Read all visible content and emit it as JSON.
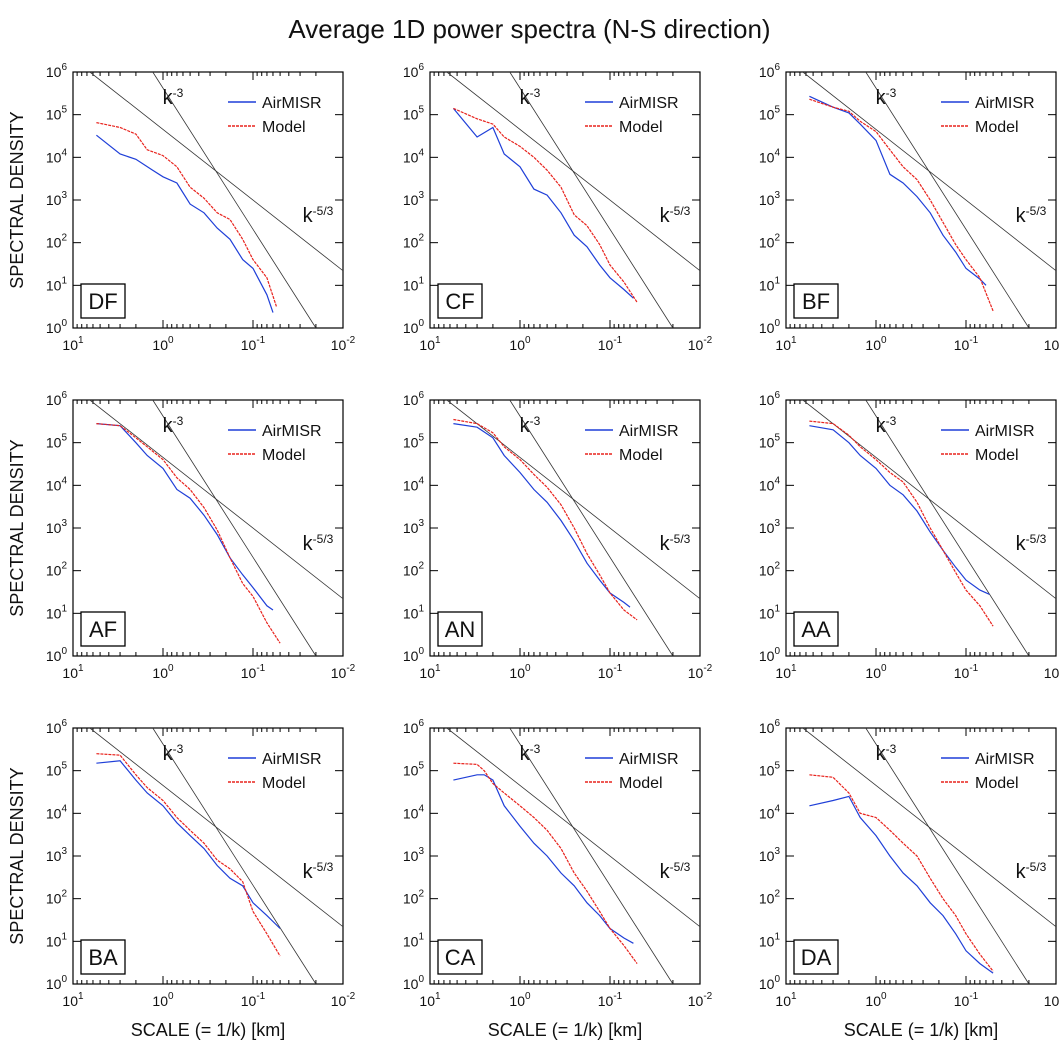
{
  "title": "Average 1D power spectra (N-S direction)",
  "axes": {
    "ylabel": "SPECTRAL DENSITY",
    "xlabel": "SCALE (= 1/k)  [km]",
    "x_ticks": [
      {
        "base": "10",
        "exp": "1"
      },
      {
        "base": "10",
        "exp": "0"
      },
      {
        "base": "10",
        "exp": "-1"
      },
      {
        "base": "10",
        "exp": "-2"
      }
    ],
    "y_ticks": [
      {
        "base": "10",
        "exp": "0"
      },
      {
        "base": "10",
        "exp": "1"
      },
      {
        "base": "10",
        "exp": "2"
      },
      {
        "base": "10",
        "exp": "3"
      },
      {
        "base": "10",
        "exp": "4"
      },
      {
        "base": "10",
        "exp": "5"
      },
      {
        "base": "10",
        "exp": "6"
      }
    ]
  },
  "legend": {
    "airmisr": "AirMISR",
    "model": "Model"
  },
  "reference_lines": {
    "k3": {
      "base": "k",
      "exp": "-3"
    },
    "k53": {
      "base": "k",
      "exp": "-5/3"
    }
  },
  "colors": {
    "airmisr": "#1f3fd8",
    "model": "#e8231d",
    "reference": "#333333",
    "axis": "#000000"
  },
  "chart_data": [
    {
      "type": "line",
      "panel": "DF",
      "x_scale": "log-reversed",
      "y_scale": "log",
      "xlim": [
        10,
        0.01
      ],
      "ylim": [
        1,
        1000000
      ],
      "series": [
        {
          "name": "AirMISR",
          "x": [
            5.5,
            3,
            2,
            1.3,
            1,
            0.7,
            0.5,
            0.35,
            0.25,
            0.18,
            0.13,
            0.1,
            0.07,
            0.06
          ],
          "y": [
            33000,
            12000,
            9000,
            5000,
            3500,
            2500,
            800,
            500,
            220,
            120,
            40,
            25,
            6,
            2.3
          ]
        },
        {
          "name": "Model",
          "x": [
            5.5,
            3,
            2,
            1.5,
            1,
            0.7,
            0.5,
            0.35,
            0.25,
            0.18,
            0.13,
            0.1,
            0.07,
            0.055
          ],
          "y": [
            65000,
            50000,
            35000,
            15000,
            11000,
            6000,
            2000,
            1100,
            500,
            350,
            120,
            40,
            15,
            3.2
          ]
        }
      ]
    },
    {
      "type": "line",
      "panel": "CF",
      "x_scale": "log-reversed",
      "y_scale": "log",
      "xlim": [
        10,
        0.01
      ],
      "ylim": [
        1,
        1000000
      ],
      "series": [
        {
          "name": "AirMISR",
          "x": [
            5.5,
            3,
            2,
            1.5,
            1,
            0.7,
            0.5,
            0.35,
            0.25,
            0.18,
            0.13,
            0.1,
            0.07,
            0.055
          ],
          "y": [
            140000,
            30000,
            50000,
            12000,
            6000,
            1800,
            1300,
            500,
            150,
            80,
            30,
            15,
            8,
            5
          ]
        },
        {
          "name": "Model",
          "x": [
            5.5,
            3,
            2,
            1.5,
            1,
            0.7,
            0.5,
            0.35,
            0.25,
            0.18,
            0.13,
            0.1,
            0.07,
            0.05
          ],
          "y": [
            140000,
            80000,
            60000,
            30000,
            18000,
            10000,
            5000,
            2000,
            450,
            250,
            90,
            30,
            12,
            4
          ]
        }
      ]
    },
    {
      "type": "line",
      "panel": "BF",
      "x_scale": "log-reversed",
      "y_scale": "log",
      "xlim": [
        10,
        0.01
      ],
      "ylim": [
        1,
        1000000
      ],
      "series": [
        {
          "name": "AirMISR",
          "x": [
            5.5,
            3,
            2,
            1.5,
            1,
            0.7,
            0.5,
            0.35,
            0.25,
            0.18,
            0.13,
            0.1,
            0.07,
            0.06
          ],
          "y": [
            270000,
            150000,
            110000,
            60000,
            25000,
            4000,
            2500,
            1200,
            500,
            150,
            60,
            25,
            14,
            10
          ]
        },
        {
          "name": "Model",
          "x": [
            5.5,
            3,
            2,
            1.5,
            1,
            0.7,
            0.5,
            0.35,
            0.25,
            0.18,
            0.13,
            0.1,
            0.07,
            0.05
          ],
          "y": [
            230000,
            150000,
            120000,
            70000,
            40000,
            15000,
            6000,
            3000,
            1000,
            300,
            90,
            40,
            15,
            2.5
          ]
        }
      ]
    },
    {
      "type": "line",
      "panel": "AF",
      "x_scale": "log-reversed",
      "y_scale": "log",
      "xlim": [
        10,
        0.01
      ],
      "ylim": [
        1,
        1000000
      ],
      "series": [
        {
          "name": "AirMISR",
          "x": [
            5.5,
            3,
            2,
            1.5,
            1,
            0.7,
            0.5,
            0.35,
            0.25,
            0.18,
            0.13,
            0.1,
            0.07,
            0.06
          ],
          "y": [
            280000,
            250000,
            100000,
            50000,
            25000,
            8000,
            5000,
            2000,
            700,
            200,
            80,
            40,
            15,
            12
          ]
        },
        {
          "name": "Model",
          "x": [
            5.5,
            3,
            2,
            1.5,
            1,
            0.7,
            0.5,
            0.35,
            0.25,
            0.18,
            0.13,
            0.1,
            0.07,
            0.05
          ],
          "y": [
            280000,
            250000,
            130000,
            80000,
            40000,
            15000,
            8000,
            3000,
            900,
            200,
            50,
            25,
            6,
            2
          ]
        }
      ]
    },
    {
      "type": "line",
      "panel": "AN",
      "x_scale": "log-reversed",
      "y_scale": "log",
      "xlim": [
        10,
        0.01
      ],
      "ylim": [
        1,
        1000000
      ],
      "series": [
        {
          "name": "AirMISR",
          "x": [
            5.5,
            3,
            2,
            1.5,
            1,
            0.7,
            0.5,
            0.35,
            0.25,
            0.18,
            0.13,
            0.1,
            0.07,
            0.06
          ],
          "y": [
            280000,
            230000,
            130000,
            50000,
            20000,
            8000,
            4000,
            1500,
            500,
            150,
            60,
            30,
            18,
            14
          ]
        },
        {
          "name": "Model",
          "x": [
            5.5,
            3,
            2,
            1.5,
            1,
            0.7,
            0.5,
            0.35,
            0.25,
            0.18,
            0.13,
            0.1,
            0.07,
            0.05
          ],
          "y": [
            350000,
            280000,
            170000,
            80000,
            40000,
            18000,
            9000,
            3500,
            1000,
            250,
            80,
            30,
            12,
            7
          ]
        }
      ]
    },
    {
      "type": "line",
      "panel": "AA",
      "x_scale": "log-reversed",
      "y_scale": "log",
      "xlim": [
        10,
        0.01
      ],
      "ylim": [
        1,
        1000000
      ],
      "series": [
        {
          "name": "AirMISR",
          "x": [
            5.5,
            3,
            2,
            1.5,
            1,
            0.7,
            0.5,
            0.35,
            0.25,
            0.18,
            0.13,
            0.1,
            0.07,
            0.055
          ],
          "y": [
            250000,
            200000,
            100000,
            50000,
            25000,
            10000,
            6000,
            2500,
            800,
            300,
            120,
            60,
            35,
            28
          ]
        },
        {
          "name": "Model",
          "x": [
            5.5,
            3,
            2,
            1.5,
            1,
            0.7,
            0.5,
            0.35,
            0.25,
            0.18,
            0.13,
            0.1,
            0.07,
            0.05
          ],
          "y": [
            320000,
            280000,
            150000,
            80000,
            40000,
            20000,
            12000,
            4000,
            1000,
            300,
            90,
            35,
            15,
            5
          ]
        }
      ]
    },
    {
      "type": "line",
      "panel": "BA",
      "x_scale": "log-reversed",
      "y_scale": "log",
      "xlim": [
        10,
        0.01
      ],
      "ylim": [
        1,
        1000000
      ],
      "series": [
        {
          "name": "AirMISR",
          "x": [
            5.5,
            3,
            2,
            1.5,
            1,
            0.7,
            0.5,
            0.35,
            0.25,
            0.18,
            0.13,
            0.1,
            0.07,
            0.05
          ],
          "y": [
            150000,
            170000,
            60000,
            30000,
            15000,
            6000,
            3000,
            1500,
            600,
            300,
            200,
            80,
            40,
            20
          ]
        },
        {
          "name": "Model",
          "x": [
            5.5,
            3,
            2,
            1.5,
            1,
            0.7,
            0.5,
            0.35,
            0.25,
            0.18,
            0.13,
            0.1,
            0.07,
            0.05
          ],
          "y": [
            250000,
            230000,
            80000,
            40000,
            20000,
            8000,
            4000,
            2000,
            800,
            500,
            250,
            50,
            15,
            4.5
          ]
        }
      ]
    },
    {
      "type": "line",
      "panel": "CA",
      "x_scale": "log-reversed",
      "y_scale": "log",
      "xlim": [
        10,
        0.01
      ],
      "ylim": [
        1,
        1000000
      ],
      "series": [
        {
          "name": "AirMISR",
          "x": [
            5.5,
            3,
            2.5,
            2,
            1.5,
            1,
            0.7,
            0.5,
            0.35,
            0.25,
            0.18,
            0.13,
            0.1,
            0.07,
            0.055
          ],
          "y": [
            60000,
            80000,
            80000,
            60000,
            15000,
            5000,
            2000,
            1000,
            400,
            200,
            80,
            40,
            20,
            12,
            9
          ]
        },
        {
          "name": "Model",
          "x": [
            5.5,
            3,
            2.5,
            2,
            1.5,
            1,
            0.7,
            0.5,
            0.35,
            0.25,
            0.18,
            0.13,
            0.1,
            0.07,
            0.05
          ],
          "y": [
            150000,
            140000,
            100000,
            50000,
            30000,
            15000,
            8000,
            4000,
            1500,
            400,
            150,
            50,
            20,
            8,
            3
          ]
        }
      ]
    },
    {
      "type": "line",
      "panel": "DA",
      "x_scale": "log-reversed",
      "y_scale": "log",
      "xlim": [
        10,
        0.01
      ],
      "ylim": [
        1,
        1000000
      ],
      "series": [
        {
          "name": "AirMISR",
          "x": [
            5.5,
            3,
            2,
            1.5,
            1,
            0.7,
            0.5,
            0.35,
            0.25,
            0.18,
            0.13,
            0.1,
            0.07,
            0.05
          ],
          "y": [
            15000,
            20000,
            25000,
            8000,
            3000,
            1000,
            400,
            200,
            80,
            40,
            15,
            6,
            3,
            1.8
          ]
        },
        {
          "name": "Model",
          "x": [
            5.5,
            3,
            2,
            1.5,
            1,
            0.7,
            0.5,
            0.35,
            0.25,
            0.18,
            0.13,
            0.1,
            0.07,
            0.05
          ],
          "y": [
            80000,
            70000,
            30000,
            10000,
            8000,
            4000,
            2000,
            1000,
            300,
            100,
            40,
            15,
            5,
            2
          ]
        }
      ]
    }
  ]
}
